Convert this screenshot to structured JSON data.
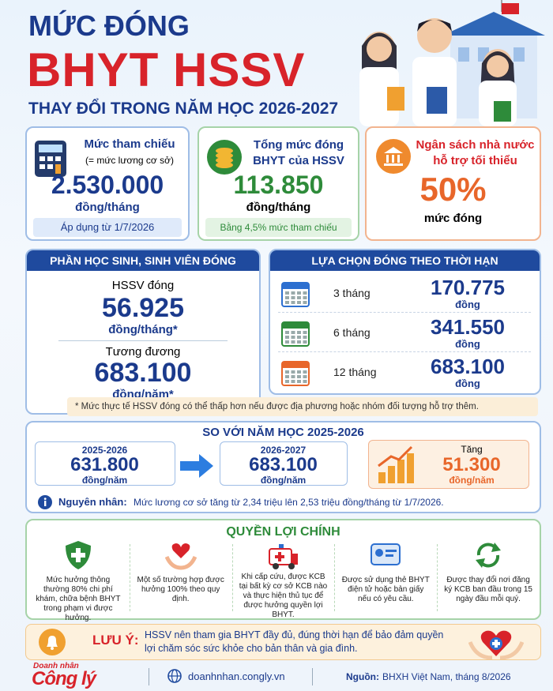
{
  "header": {
    "title_line1": "MỨC ĐÓNG",
    "title_line2": "BHYT HSSV",
    "subtitle": "THAY ĐỔI TRONG NĂM HỌC 2026-2027"
  },
  "cards": [
    {
      "title": "Mức tham chiếu",
      "note": "(= mức lương cơ sở)",
      "value": "2.530.000",
      "unit": "đồng/tháng",
      "footer": "Áp dụng từ 1/7/2026"
    },
    {
      "title": "Tổng mức đóng BHYT của HSSV",
      "value": "113.850",
      "unit": "đồng/tháng",
      "footer": "Bằng 4,5% mức tham chiếu"
    },
    {
      "title": "Ngân sách nhà nước hỗ trợ tối thiểu",
      "value": "50%",
      "unit": "mức đóng"
    }
  ],
  "student_share": {
    "heading": "PHẦN HỌC SINH, SINH VIÊN ĐÓNG",
    "monthly_label": "HSSV đóng",
    "monthly_value": "56.925",
    "monthly_unit": "đồng/tháng*",
    "yearly_label": "Tương đương",
    "yearly_value": "683.100",
    "yearly_unit": "đồng/năm*"
  },
  "terms": {
    "heading": "LỰA CHỌN ĐÓNG THEO THỜI HẠN",
    "rows": [
      {
        "period": "3 tháng",
        "amount": "170.775",
        "unit": "đồng"
      },
      {
        "period": "6 tháng",
        "amount": "341.550",
        "unit": "đồng"
      },
      {
        "period": "12 tháng",
        "amount": "683.100",
        "unit": "đồng"
      }
    ]
  },
  "footnote": "* Mức thực tế HSSV đóng có thể thấp hơn nếu được địa phương hoặc nhóm đối tượng hỗ trợ thêm.",
  "comparison": {
    "heading": "SO VỚI NĂM HỌC 2025-2026",
    "before": {
      "year": "2025-2026",
      "value": "631.800",
      "unit": "đồng/năm"
    },
    "after": {
      "year": "2026-2027",
      "value": "683.100",
      "unit": "đồng/năm"
    },
    "increase": {
      "label": "Tăng",
      "value": "51.300",
      "unit": "đồng/năm"
    },
    "reason_label": "Nguyên nhân:",
    "reason": "Mức lương cơ sở tăng từ 2,34 triệu lên 2,53 triệu đồng/tháng từ 1/7/2026."
  },
  "benefits": {
    "heading": "QUYỀN LỢI CHÍNH",
    "items": [
      "Mức hưởng thông thường 80% chi phí khám, chữa bệnh BHYT trong phạm vi được hưởng.",
      "Một số trường hợp được hưởng 100% theo quy định.",
      "Khi cấp cứu, được KCB tại bất kỳ cơ sở KCB nào và thực hiện thủ tục để được hưởng quyền lợi BHYT.",
      "Được sử dụng thẻ BHYT điện tử hoặc bản giấy nếu có yêu cầu.",
      "Được thay đổi nơi đăng ký KCB ban đầu trong 15 ngày đầu mỗi quý."
    ]
  },
  "notice": {
    "label": "LƯU Ý:",
    "text": "HSSV nên tham gia BHYT đầy đủ, đúng thời hạn để bảo đảm quyền lợi chăm sóc sức khỏe cho bản thân và gia đình."
  },
  "footer": {
    "brand_top": "Doanh nhân",
    "brand": "Công lý",
    "website": "doanhnhan.congly.vn",
    "source_label": "Nguồn:",
    "source": "BHXH Việt Nam, tháng 8/2026"
  }
}
